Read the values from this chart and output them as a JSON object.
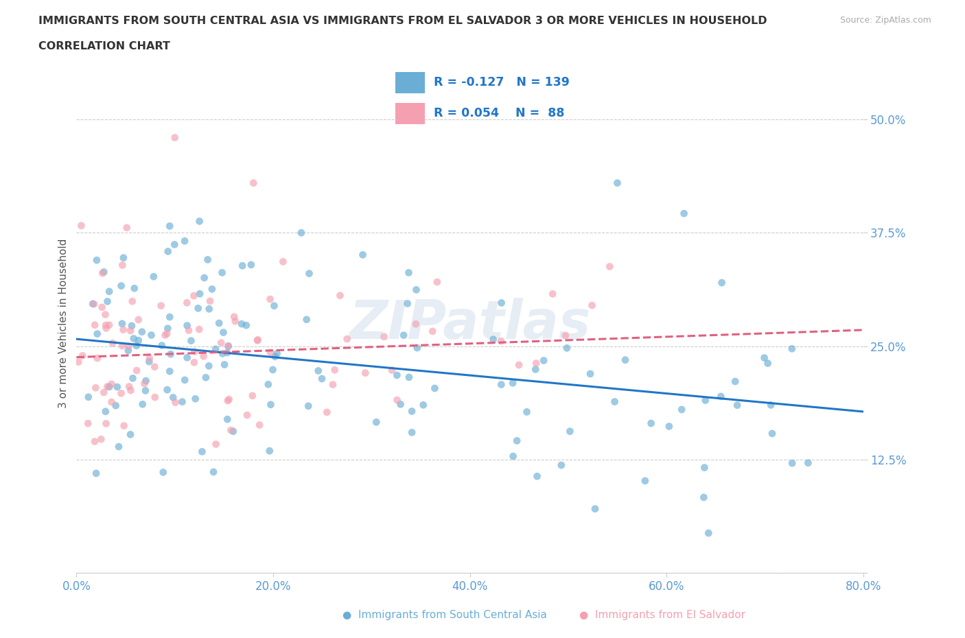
{
  "title_line1": "IMMIGRANTS FROM SOUTH CENTRAL ASIA VS IMMIGRANTS FROM EL SALVADOR 3 OR MORE VEHICLES IN HOUSEHOLD",
  "title_line2": "CORRELATION CHART",
  "source_text": "Source: ZipAtlas.com",
  "ylabel": "3 or more Vehicles in Household",
  "xlim": [
    0.0,
    0.8
  ],
  "ylim": [
    0.0,
    0.55
  ],
  "yticks": [
    0.0,
    0.125,
    0.25,
    0.375,
    0.5
  ],
  "ytick_labels": [
    "",
    "12.5%",
    "25.0%",
    "37.5%",
    "50.0%"
  ],
  "xticks": [
    0.0,
    0.2,
    0.4,
    0.6,
    0.8
  ],
  "xtick_labels": [
    "0.0%",
    "20.0%",
    "40.0%",
    "60.0%",
    "80.0%"
  ],
  "color_blue": "#6aaed6",
  "color_pink": "#f4a0b0",
  "line_blue": "#2176c7",
  "line_pink": "#e06080",
  "legend_R1": "-0.127",
  "legend_N1": "139",
  "legend_R2": "0.054",
  "legend_N2": "88",
  "grid_color": "#cccccc",
  "blue_trend_y_start": 0.258,
  "blue_trend_y_end": 0.178,
  "pink_trend_y_start": 0.238,
  "pink_trend_y_end": 0.268,
  "legend_label_blue": "Immigrants from South Central Asia",
  "legend_label_pink": "Immigrants from El Salvador"
}
